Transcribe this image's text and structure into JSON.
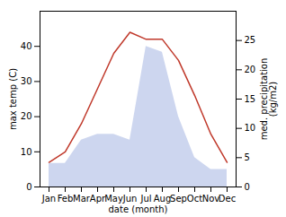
{
  "chart_data": {
    "type": "line",
    "categories": [
      "Jan",
      "Feb",
      "Mar",
      "Apr",
      "May",
      "Jun",
      "Jul",
      "Aug",
      "Sep",
      "Oct",
      "Nov",
      "Dec"
    ],
    "xlabel": "date (month)",
    "ylabel": "max temp (C)",
    "y2label": "med. precipitation\n(kg/m2)",
    "ylim": [
      0,
      50
    ],
    "yticks": [
      0,
      10,
      20,
      30,
      40
    ],
    "y2lim": [
      0,
      30
    ],
    "y2ticks": [
      0,
      5,
      10,
      15,
      20,
      25
    ],
    "grid": false,
    "series": [
      {
        "type": "area",
        "axis": "y2",
        "color": "#b8c4e8",
        "values": [
          4,
          4,
          8,
          9,
          9,
          8,
          24,
          23,
          12,
          5,
          3,
          3
        ]
      },
      {
        "type": "line",
        "color": "#c0392b",
        "values": [
          7,
          10,
          18,
          28,
          38,
          44,
          42,
          42,
          36,
          26,
          15,
          7
        ]
      }
    ]
  }
}
